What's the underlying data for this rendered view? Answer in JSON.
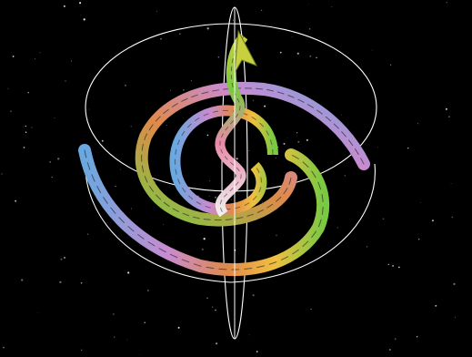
{
  "scene": {
    "background_color": "#000000",
    "wireframe_color": "#ffffff",
    "ribbon_palette": [
      "#f0c040",
      "#7ac943",
      "#e08a4a",
      "#c98bd0",
      "#6aa8e0",
      "#e88aa8"
    ]
  }
}
